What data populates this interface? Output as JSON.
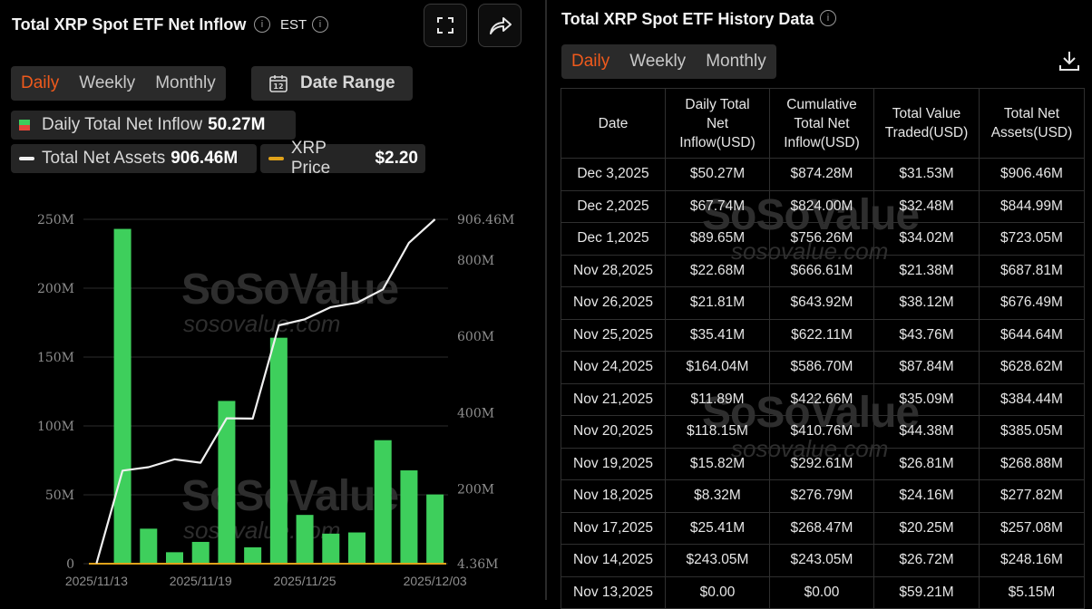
{
  "left": {
    "title": "Total XRP Spot ETF Net Inflow",
    "timezone": "EST",
    "tabs": [
      {
        "label": "Daily",
        "active": true
      },
      {
        "label": "Weekly",
        "active": false
      },
      {
        "label": "Monthly",
        "active": false
      }
    ],
    "date_range_label": "Date Range",
    "legend": {
      "inflow_label": "Daily Total Net Inflow",
      "inflow_value": "50.27M",
      "assets_label": "Total Net Assets",
      "assets_value": "906.46M",
      "price_label": "XRP Price",
      "price_value": "$2.20"
    },
    "watermark": "SoSoValue",
    "watermark_sub": "sosovalue.com"
  },
  "chart_data": {
    "type": "bar",
    "x": [
      "2025/11/13",
      "2025/11/14",
      "2025/11/17",
      "2025/11/18",
      "2025/11/19",
      "2025/11/20",
      "2025/11/21",
      "2025/11/24",
      "2025/11/25",
      "2025/11/26",
      "2025/11/28",
      "2025/12/01",
      "2025/12/02",
      "2025/12/03"
    ],
    "x_tick_labels": [
      "2025/11/13",
      "2025/11/19",
      "2025/11/25",
      "2025/12/03"
    ],
    "x_tick_indices": [
      0,
      4,
      8,
      13
    ],
    "series": [
      {
        "name": "Daily Total Net Inflow",
        "type": "bar",
        "axis": "left",
        "color": "#3ecf5c",
        "values": [
          0,
          243.05,
          25.41,
          8.32,
          15.82,
          118.15,
          11.89,
          164.04,
          35.41,
          21.81,
          22.68,
          89.65,
          67.74,
          50.27
        ]
      },
      {
        "name": "Total Net Assets",
        "type": "line",
        "axis": "right",
        "color": "#f0f0f0",
        "values": [
          5.15,
          248.16,
          257.08,
          277.82,
          268.88,
          385.05,
          384.44,
          628.62,
          644.64,
          676.49,
          687.81,
          723.05,
          844.99,
          906.46
        ]
      },
      {
        "name": "XRP Price",
        "type": "line",
        "axis": "hidden",
        "color": "#e0a21a",
        "values": [
          null,
          null,
          null,
          null,
          null,
          null,
          null,
          null,
          null,
          null,
          null,
          null,
          null,
          2.2
        ]
      }
    ],
    "y_left": {
      "ticks": [
        "0",
        "50M",
        "100M",
        "150M",
        "200M",
        "250M"
      ],
      "tick_values": [
        0,
        50,
        100,
        150,
        200,
        250
      ],
      "range": [
        0,
        250
      ]
    },
    "y_right": {
      "ticks": [
        "4.36M",
        "200M",
        "400M",
        "600M",
        "800M",
        "906.46M"
      ],
      "tick_values": [
        4.36,
        200,
        400,
        600,
        800,
        906.46
      ],
      "range": [
        4.36,
        906.46
      ]
    },
    "grid": true
  },
  "right": {
    "title": "Total XRP Spot ETF History Data",
    "tabs": [
      {
        "label": "Daily",
        "active": true
      },
      {
        "label": "Weekly",
        "active": false
      },
      {
        "label": "Monthly",
        "active": false
      }
    ],
    "table": {
      "headers": [
        {
          "lines": [
            "Date"
          ]
        },
        {
          "lines": [
            "Daily Total",
            "Net",
            "Inflow(USD)"
          ]
        },
        {
          "lines": [
            "Cumulative",
            "Total Net",
            "Inflow(USD)"
          ]
        },
        {
          "lines": [
            "Total Value",
            "Traded(USD)"
          ]
        },
        {
          "lines": [
            "Total Net",
            "Assets(USD)"
          ]
        }
      ],
      "rows": [
        [
          "Dec 3,2025",
          "$50.27M",
          "$874.28M",
          "$31.53M",
          "$906.46M"
        ],
        [
          "Dec 2,2025",
          "$67.74M",
          "$824.00M",
          "$32.48M",
          "$844.99M"
        ],
        [
          "Dec 1,2025",
          "$89.65M",
          "$756.26M",
          "$34.02M",
          "$723.05M"
        ],
        [
          "Nov 28,2025",
          "$22.68M",
          "$666.61M",
          "$21.38M",
          "$687.81M"
        ],
        [
          "Nov 26,2025",
          "$21.81M",
          "$643.92M",
          "$38.12M",
          "$676.49M"
        ],
        [
          "Nov 25,2025",
          "$35.41M",
          "$622.11M",
          "$43.76M",
          "$644.64M"
        ],
        [
          "Nov 24,2025",
          "$164.04M",
          "$586.70M",
          "$87.84M",
          "$628.62M"
        ],
        [
          "Nov 21,2025",
          "$11.89M",
          "$422.66M",
          "$35.09M",
          "$384.44M"
        ],
        [
          "Nov 20,2025",
          "$118.15M",
          "$410.76M",
          "$44.38M",
          "$385.05M"
        ],
        [
          "Nov 19,2025",
          "$15.82M",
          "$292.61M",
          "$26.81M",
          "$268.88M"
        ],
        [
          "Nov 18,2025",
          "$8.32M",
          "$276.79M",
          "$24.16M",
          "$277.82M"
        ],
        [
          "Nov 17,2025",
          "$25.41M",
          "$268.47M",
          "$20.25M",
          "$257.08M"
        ],
        [
          "Nov 14,2025",
          "$243.05M",
          "$243.05M",
          "$26.72M",
          "$248.16M"
        ],
        [
          "Nov 13,2025",
          "$0.00",
          "$0.00",
          "$59.21M",
          "$5.15M"
        ]
      ]
    }
  },
  "colors": {
    "accent": "#ef5a1c",
    "positive": "#4fd566",
    "bar": "#3ecf5c",
    "price": "#e0a21a"
  }
}
